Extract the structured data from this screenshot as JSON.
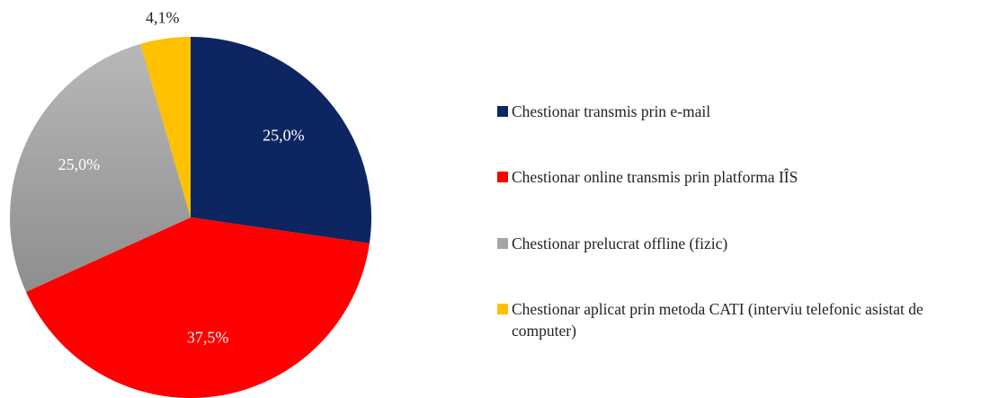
{
  "chart_data": {
    "type": "pie",
    "categories": [
      "Chestionar transmis prin e-mail",
      "Chestionar online transmis prin platforma IÎS",
      "Chestionar prelucrat offline (fizic)",
      "Chestionar aplicat prin metoda CATI (interviu telefonic asistat de computer)"
    ],
    "values": [
      25.0,
      37.5,
      25.0,
      4.1
    ],
    "value_labels": [
      "25,0%",
      "37,5%",
      "25,0%",
      "4,1%"
    ],
    "colors": [
      "#0d2561",
      "#ff0000",
      "#a5a5a5",
      "#ffc000"
    ],
    "legend": "right"
  }
}
